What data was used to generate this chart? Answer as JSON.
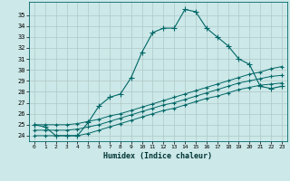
{
  "title": "",
  "xlabel": "Humidex (Indice chaleur)",
  "ylabel": "",
  "background_color": "#cce8e8",
  "grid_color": "#b0c8c8",
  "line_color": "#006666",
  "xlim": [
    -0.5,
    23.5
  ],
  "ylim": [
    23.5,
    36.2
  ],
  "xticks": [
    0,
    1,
    2,
    3,
    4,
    5,
    6,
    7,
    8,
    9,
    10,
    11,
    12,
    13,
    14,
    15,
    16,
    17,
    18,
    19,
    20,
    21,
    22,
    23
  ],
  "yticks": [
    24,
    25,
    26,
    27,
    28,
    29,
    30,
    31,
    32,
    33,
    34,
    35
  ],
  "series": [
    [
      25.0,
      24.8,
      24.0,
      24.0,
      24.0,
      25.2,
      26.7,
      27.5,
      27.8,
      29.3,
      31.6,
      33.4,
      33.8,
      33.8,
      35.5,
      35.3,
      33.8,
      33.0,
      32.2,
      31.0,
      30.5,
      28.5,
      28.3,
      28.5
    ],
    [
      25.0,
      25.0,
      25.0,
      25.0,
      25.1,
      25.3,
      25.5,
      25.8,
      26.0,
      26.3,
      26.6,
      26.9,
      27.2,
      27.5,
      27.8,
      28.1,
      28.4,
      28.7,
      29.0,
      29.3,
      29.6,
      29.8,
      30.1,
      30.3
    ],
    [
      24.0,
      24.0,
      24.0,
      24.0,
      24.0,
      24.2,
      24.5,
      24.8,
      25.1,
      25.4,
      25.7,
      26.0,
      26.3,
      26.5,
      26.8,
      27.1,
      27.4,
      27.6,
      27.9,
      28.2,
      28.4,
      28.6,
      28.7,
      28.8
    ],
    [
      24.5,
      24.5,
      24.5,
      24.5,
      24.6,
      24.8,
      25.0,
      25.3,
      25.6,
      25.9,
      26.2,
      26.5,
      26.8,
      27.0,
      27.3,
      27.6,
      27.9,
      28.2,
      28.5,
      28.8,
      29.0,
      29.2,
      29.4,
      29.5
    ]
  ]
}
